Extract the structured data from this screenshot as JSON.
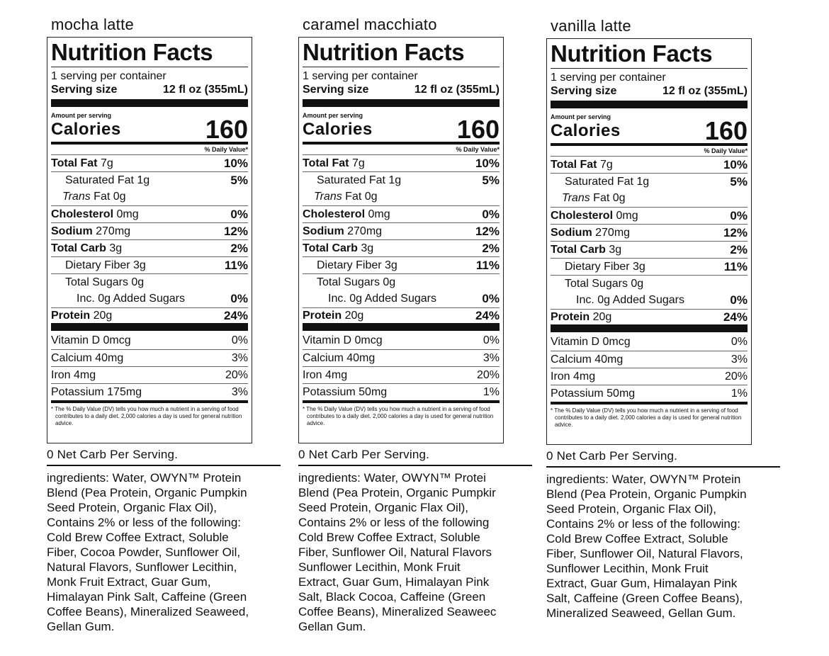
{
  "labels": [
    {
      "flavor": "mocha latte",
      "title": "Nutrition Facts",
      "servings_per_container": "1 serving per container",
      "serving_size_label": "Serving size",
      "serving_size_value": "12 fl oz (355mL)",
      "amount_per_serving": "Amount per serving",
      "calories_label": "Calories",
      "calories_value": "160",
      "dv_header": "% Daily Value*",
      "total_fat": {
        "name": "Total Fat",
        "amount": "7g",
        "pct": "10%"
      },
      "saturated_fat": {
        "name": "Saturated Fat 1g",
        "pct": "5%"
      },
      "trans_fat": {
        "name": "Trans",
        "rest": "Fat 0g"
      },
      "cholesterol": {
        "name": "Cholesterol",
        "amount": "0mg",
        "pct": "0%"
      },
      "sodium": {
        "name": "Sodium",
        "amount": "270mg",
        "pct": "12%"
      },
      "total_carb": {
        "name": "Total Carb",
        "amount": "3g",
        "pct": "2%"
      },
      "dietary_fiber": {
        "name": "Dietary Fiber 3g",
        "pct": "11%"
      },
      "total_sugars": {
        "name": "Total Sugars 0g"
      },
      "added_sugars": {
        "name": "Inc. 0g Added Sugars",
        "pct": "0%"
      },
      "protein": {
        "name": "Protein",
        "amount": "20g",
        "pct": "24%"
      },
      "vitamin_d": {
        "name": "Vitamin D 0mcg",
        "pct": "0%"
      },
      "calcium": {
        "name": "Calcium 40mg",
        "pct": "3%"
      },
      "iron": {
        "name": "Iron 4mg",
        "pct": "20%"
      },
      "potassium": {
        "name": "Potassium 175mg",
        "pct": "3%"
      },
      "footnote": "* The % Daily Value (DV) tells you how much a nutrient in a serving of food contributes to a daily diet. 2,000 calories a day is used for general nutrition advice.",
      "net_carb": "0 Net Carb Per Serving.",
      "ingredients": "ingredients: Water, OWYN™ Protein\nBlend (Pea Protein, Organic Pumpkin\nSeed Protein, Organic Flax Oil),\nContains 2% or less of the following:\nCold Brew Coffee Extract, Soluble\nFiber, Cocoa Powder, Sunflower Oil,\nNatural Flavors, Sunflower Lecithin,\nMonk Fruit Extract, Guar Gum,\nHimalayan Pink Salt, Caffeine (Green\nCoffee Beans), Mineralized Seaweed,\nGellan Gum."
    },
    {
      "flavor": "caramel macchiato",
      "title": "Nutrition Facts",
      "servings_per_container": "1 serving per container",
      "serving_size_label": "Serving size",
      "serving_size_value": "12 fl oz (355mL)",
      "amount_per_serving": "Amount per serving",
      "calories_label": "Calories",
      "calories_value": "160",
      "dv_header": "% Daily Value*",
      "total_fat": {
        "name": "Total Fat",
        "amount": "7g",
        "pct": "10%"
      },
      "saturated_fat": {
        "name": "Saturated Fat 1g",
        "pct": "5%"
      },
      "trans_fat": {
        "name": "Trans",
        "rest": "Fat 0g"
      },
      "cholesterol": {
        "name": "Cholesterol",
        "amount": "0mg",
        "pct": "0%"
      },
      "sodium": {
        "name": "Sodium",
        "amount": "270mg",
        "pct": "12%"
      },
      "total_carb": {
        "name": "Total Carb",
        "amount": "3g",
        "pct": "2%"
      },
      "dietary_fiber": {
        "name": "Dietary Fiber 3g",
        "pct": "11%"
      },
      "total_sugars": {
        "name": "Total Sugars 0g"
      },
      "added_sugars": {
        "name": "Inc. 0g Added Sugars",
        "pct": "0%"
      },
      "protein": {
        "name": "Protein",
        "amount": "20g",
        "pct": "24%"
      },
      "vitamin_d": {
        "name": "Vitamin D 0mcg",
        "pct": "0%"
      },
      "calcium": {
        "name": "Calcium 40mg",
        "pct": "3%"
      },
      "iron": {
        "name": "Iron 4mg",
        "pct": "20%"
      },
      "potassium": {
        "name": "Potassium 50mg",
        "pct": "1%"
      },
      "footnote": "* The % Daily Value (DV) tells you how much a nutrient in a serving of food contributes to a daily diet. 2,000 calories a day is used for general nutrition advice.",
      "net_carb": "0 Net Carb Per Serving.",
      "ingredients": "ingredients: Water, OWYN™ Protei\nBlend (Pea Protein, Organic Pumpkir\nSeed Protein, Organic Flax Oil),\nContains 2% or less of the following\nCold Brew Coffee Extract, Soluble\nFiber, Sunflower Oil, Natural Flavors\nSunflower Lecithin, Monk Fruit\nExtract, Guar Gum, Himalayan Pink\nSalt, Black Cocoa, Caffeine (Green\nCoffee Beans), Mineralized Seaweec\nGellan Gum."
    },
    {
      "flavor": "vanilla latte",
      "title": "Nutrition Facts",
      "servings_per_container": "1 serving per container",
      "serving_size_label": "Serving size",
      "serving_size_value": "12 fl oz (355mL)",
      "amount_per_serving": "Amount per serving",
      "calories_label": "Calories",
      "calories_value": "160",
      "dv_header": "% Daily Value*",
      "total_fat": {
        "name": "Total Fat",
        "amount": "7g",
        "pct": "10%"
      },
      "saturated_fat": {
        "name": "Saturated Fat 1g",
        "pct": "5%"
      },
      "trans_fat": {
        "name": "Trans",
        "rest": "Fat 0g"
      },
      "cholesterol": {
        "name": "Cholesterol",
        "amount": "0mg",
        "pct": "0%"
      },
      "sodium": {
        "name": "Sodium",
        "amount": "270mg",
        "pct": "12%"
      },
      "total_carb": {
        "name": "Total Carb",
        "amount": "3g",
        "pct": "2%"
      },
      "dietary_fiber": {
        "name": "Dietary Fiber 3g",
        "pct": "11%"
      },
      "total_sugars": {
        "name": "Total Sugars 0g"
      },
      "added_sugars": {
        "name": "Inc. 0g Added Sugars",
        "pct": "0%"
      },
      "protein": {
        "name": "Protein",
        "amount": "20g",
        "pct": "24%"
      },
      "vitamin_d": {
        "name": "Vitamin D 0mcg",
        "pct": "0%"
      },
      "calcium": {
        "name": "Calcium 40mg",
        "pct": "3%"
      },
      "iron": {
        "name": "Iron 4mg",
        "pct": "20%"
      },
      "potassium": {
        "name": "Potassium 50mg",
        "pct": "1%"
      },
      "footnote": "* The % Daily Value (DV) tells you how much a nutrient in a serving of food contributes to a daily diet. 2,000 calories a day is used for general nutrition advice.",
      "net_carb": "0 Net Carb Per Serving.",
      "ingredients": "ingredients: Water, OWYN™ Protein\nBlend (Pea Protein, Organic Pumpkin\nSeed Protein, Organic Flax Oil),\nContains 2% or less of the following:\nCold Brew Coffee Extract, Soluble\nFiber, Sunflower Oil, Natural Flavors,\nSunflower Lecithin, Monk Fruit\nExtract, Guar Gum, Himalayan Pink\nSalt, Caffeine (Green Coffee Beans),\nMineralized Seaweed, Gellan Gum."
    }
  ]
}
